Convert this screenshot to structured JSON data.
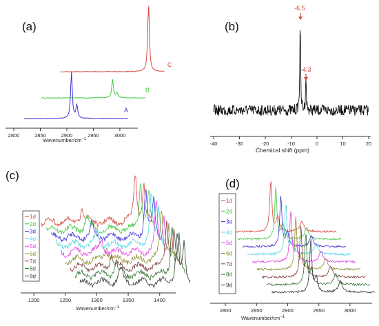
{
  "chart_data": [
    {
      "type": "line",
      "panel_label": "(a)",
      "xlabel": "Wavenumber/cm",
      "xlabel_sup": "−1",
      "xlim": [
        2800,
        3030
      ],
      "xticks": [
        "2800",
        "2850",
        "2900",
        "2950",
        "3000"
      ],
      "series": [
        {
          "name": "A",
          "color": "#3a2fd6",
          "peaks": [
            {
              "x": 2905,
              "height": 0.75
            },
            {
              "x": 2917,
              "height": 0.22
            }
          ]
        },
        {
          "name": "B",
          "color": "#3bc83b",
          "peaks": [
            {
              "x": 2958,
              "height": 0.3
            },
            {
              "x": 2968,
              "height": 0.08
            }
          ]
        },
        {
          "name": "C",
          "color": "#d4453b",
          "peaks": [
            {
              "x": 2995,
              "height": 1.0
            }
          ]
        }
      ]
    },
    {
      "type": "line",
      "panel_label": "(b)",
      "xlabel": "Chemical shift (ppm)",
      "xlim": [
        -40,
        20
      ],
      "xticks": [
        "-40",
        "-30",
        "-20",
        "-10",
        "0",
        "10",
        "20"
      ],
      "series": [
        {
          "name": "",
          "color": "#000000",
          "peaks": [
            {
              "x": -6.5,
              "height": 1.0
            },
            {
              "x": -4.3,
              "height": 0.38
            }
          ]
        }
      ],
      "annotations": [
        {
          "text": "-6.5",
          "x": -6.5,
          "color": "#d4453b"
        },
        {
          "text": "-4.3",
          "x": -4.3,
          "color": "#d4453b"
        }
      ]
    },
    {
      "type": "line",
      "panel_label": "(c)",
      "xlabel": "Wavenumber/cm",
      "xlabel_sup": "−1",
      "xlim": [
        1190,
        1420
      ],
      "xticks": [
        "1200",
        "1250",
        "1300",
        "1350",
        "1400"
      ],
      "legend": {
        "placement": "left",
        "entries": [
          "1d",
          "2d",
          "3d",
          "4d",
          "5d",
          "6d",
          "7d",
          "8d",
          "9d"
        ]
      },
      "series": [
        {
          "name": "1d",
          "color": "#d4453b"
        },
        {
          "name": "2d",
          "color": "#3bc83b"
        },
        {
          "name": "3d",
          "color": "#3a2fd6"
        },
        {
          "name": "4d",
          "color": "#4fd6e6"
        },
        {
          "name": "5d",
          "color": "#e23be6"
        },
        {
          "name": "6d",
          "color": "#8a8a2a"
        },
        {
          "name": "7d",
          "color": "#7a3a3a"
        },
        {
          "name": "8d",
          "color": "#2e6e2e"
        },
        {
          "name": "9d",
          "color": "#333333"
        }
      ]
    },
    {
      "type": "line",
      "panel_label": "(d)",
      "xlabel": "Wavenumber/cm",
      "xlabel_sup": "−1",
      "xlim": [
        2790,
        3030
      ],
      "xticks": [
        "2800",
        "2850",
        "2900",
        "2950",
        "3000"
      ],
      "legend": {
        "placement": "left",
        "entries": [
          "1d",
          "2d",
          "3d",
          "4d",
          "5d",
          "6d",
          "7d",
          "8d",
          "9d"
        ]
      },
      "series": [
        {
          "name": "1d",
          "color": "#d4453b"
        },
        {
          "name": "2d",
          "color": "#3bc83b"
        },
        {
          "name": "3d",
          "color": "#3a2fd6"
        },
        {
          "name": "4d",
          "color": "#4fd6e6"
        },
        {
          "name": "5d",
          "color": "#e23be6"
        },
        {
          "name": "6d",
          "color": "#8a8a2a"
        },
        {
          "name": "7d",
          "color": "#7a3a3a"
        },
        {
          "name": "8d",
          "color": "#2e6e2e"
        },
        {
          "name": "9d",
          "color": "#333333"
        }
      ]
    }
  ]
}
